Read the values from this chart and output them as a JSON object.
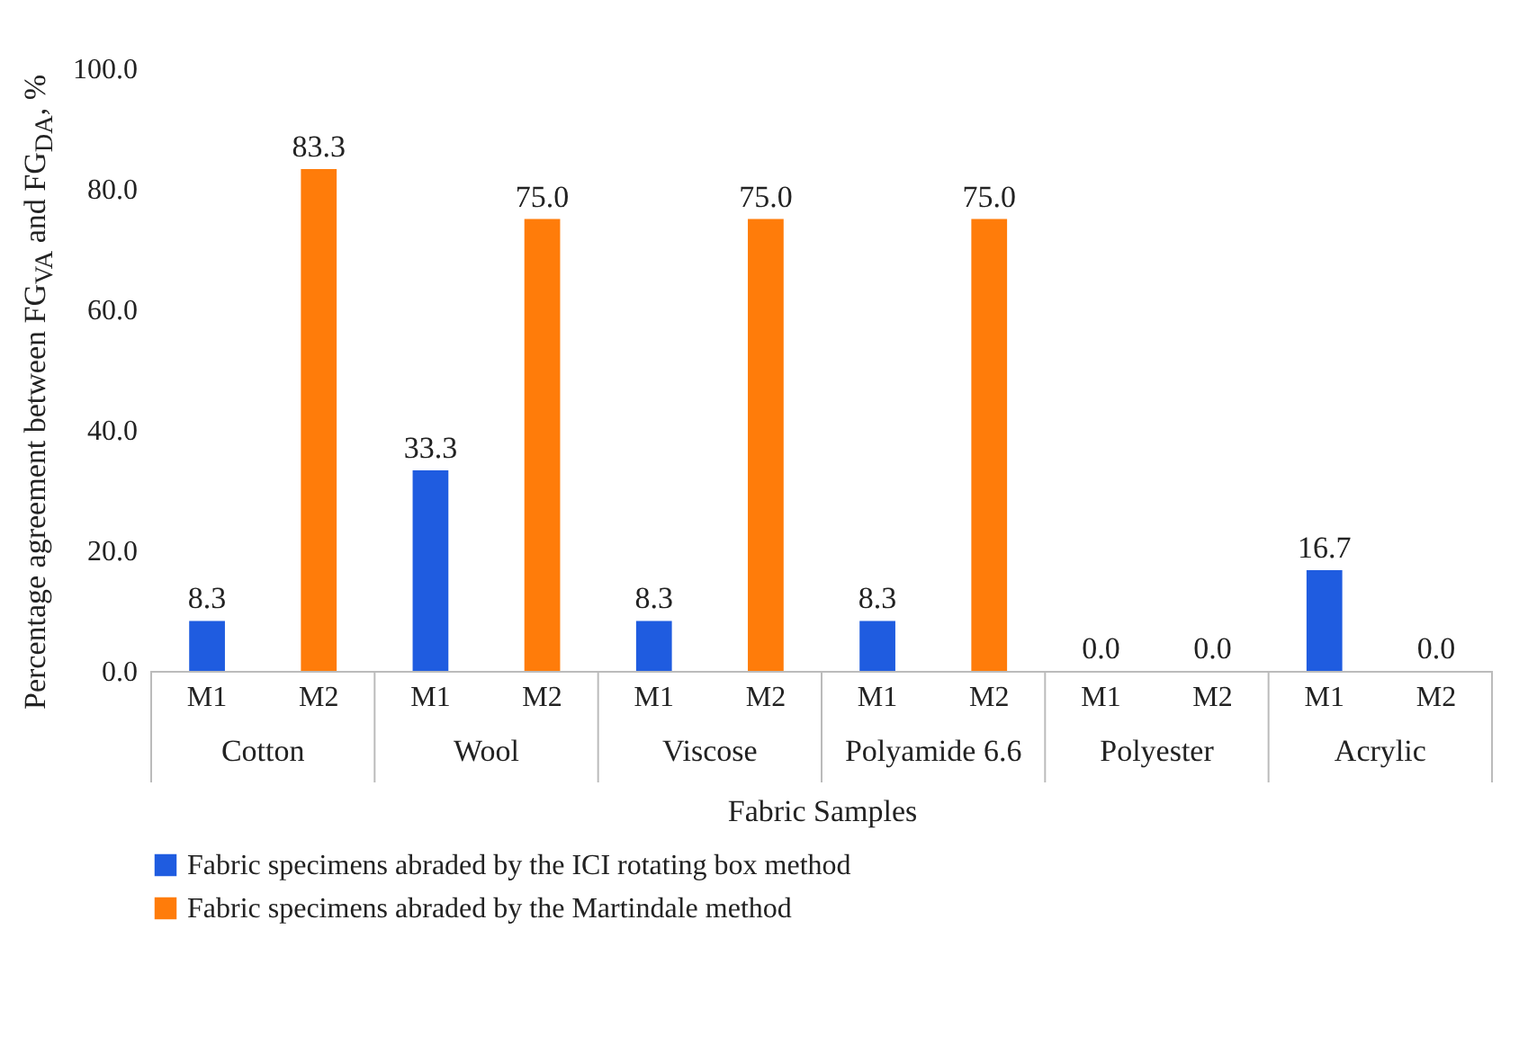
{
  "chart_data": {
    "type": "bar",
    "categories": [
      "M1",
      "M2",
      "M1",
      "M2",
      "M1",
      "M2",
      "M1",
      "M2",
      "M1",
      "M2",
      "M1",
      "M2"
    ],
    "annotations": [
      "Cotton",
      "Wool",
      "Viscose",
      "Polyamide 6.6",
      "Polyester",
      "Acrylic"
    ],
    "xlabel": "Fabric Samples",
    "ylabel": "Percentage agreement between FG$_{VA}$ and FG$_{DA}$, %",
    "ylim": [
      0,
      100
    ],
    "yticks": [
      {
        "value": 0,
        "label": "0.0"
      },
      {
        "value": 20,
        "label": "20.0"
      },
      {
        "value": 40,
        "label": "40.0"
      },
      {
        "value": 60,
        "label": "60.0"
      },
      {
        "value": 80,
        "label": "80.0"
      },
      {
        "value": 100,
        "label": "100.0"
      }
    ],
    "legend": "bottom",
    "series": [
      {
        "name": "Fabric specimens abraded by the ICI rotating box method",
        "color": "#1f5ce0",
        "values": [
          8.3,
          null,
          33.3,
          null,
          8.3,
          null,
          8.3,
          null,
          0.0,
          null,
          16.7,
          null
        ],
        "value_labels": [
          "8.3",
          null,
          "33.3",
          null,
          "8.3",
          null,
          "8.3",
          null,
          "0.0",
          null,
          "16.7",
          null
        ]
      },
      {
        "name": "Fabric specimens abraded by the Martindale method",
        "color": "#ff7c0a",
        "values": [
          null,
          83.3,
          null,
          75.0,
          null,
          75.0,
          null,
          75.0,
          null,
          0.0,
          null,
          0.0
        ],
        "value_labels": [
          null,
          "83.3",
          null,
          "75.0",
          null,
          "75.0",
          null,
          "75.0",
          null,
          "0.0",
          null,
          "0.0"
        ]
      }
    ]
  }
}
